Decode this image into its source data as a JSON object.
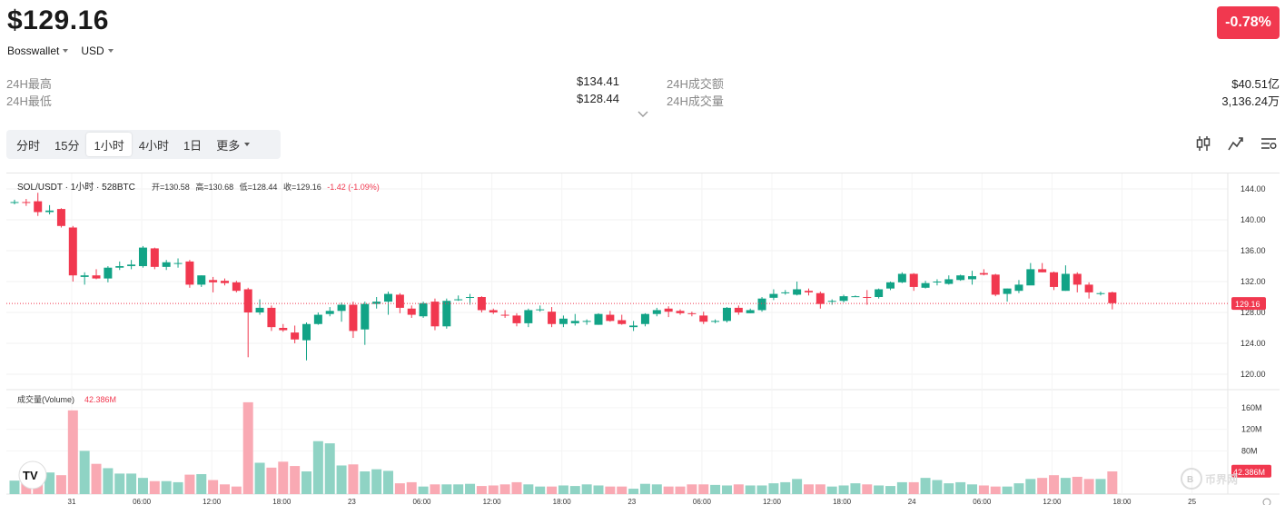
{
  "header": {
    "price": "$129.16",
    "change": "-0.78%",
    "exchange": "Bosswallet",
    "currency": "USD"
  },
  "stats": {
    "high_label": "24H最高",
    "high_value": "$134.41",
    "low_label": "24H最低",
    "low_value": "$128.44",
    "turnover_label": "24H成交额",
    "turnover_value": "$40.51亿",
    "volume_label": "24H成交量",
    "volume_value": "3,136.24万"
  },
  "tabs": [
    "分时",
    "15分",
    "1小时",
    "4小时",
    "1日",
    "更多"
  ],
  "active_tab": "1小时",
  "icons": [
    "candlestick-icon",
    "indicator-icon",
    "settings-icon"
  ],
  "colors": {
    "up": "#12a386",
    "down": "#f1384f",
    "up_volume": "#8fd3c4",
    "down_volume": "#f9a9b3",
    "badge": "#f1384f"
  },
  "chart_data": [
    {
      "type": "candlestick",
      "title": "SOL/USDT · 1小时 · 528BTC",
      "ohlc_labels": {
        "open": "开=130.58",
        "high": "高=130.68",
        "low": "低=128.44",
        "close": "收=129.16",
        "change": "-1.42 (-1.09%)"
      },
      "ylim": [
        118,
        146
      ],
      "y_ticks": [
        "144.00",
        "140.00",
        "136.00",
        "132.00",
        "128.00",
        "124.00",
        "120.00"
      ],
      "last_price_label": "129.16",
      "last_price": 129.16,
      "x_tick_labels": [
        "31",
        "06:00",
        "12:00",
        "18:00",
        "23",
        "06:00",
        "12:00",
        "18:00",
        "23",
        "06:00",
        "12:00",
        "18:00",
        "24",
        "06:00",
        "12:00",
        "18:00",
        "25"
      ],
      "ohlc": [
        [
          142.3,
          142.6,
          142.0,
          142.3
        ],
        [
          142.3,
          142.7,
          141.8,
          142.2
        ],
        [
          142.4,
          143.5,
          140.5,
          141.0
        ],
        [
          141.0,
          141.9,
          140.7,
          141.2
        ],
        [
          141.4,
          141.5,
          139.0,
          139.2
        ],
        [
          139.0,
          139.2,
          132.0,
          132.8
        ],
        [
          132.6,
          133.2,
          131.6,
          132.8
        ],
        [
          132.8,
          133.6,
          132.3,
          132.4
        ],
        [
          132.4,
          134.0,
          131.9,
          133.8
        ],
        [
          133.8,
          134.6,
          133.5,
          134.0
        ],
        [
          134.0,
          134.8,
          133.6,
          134.2
        ],
        [
          134.0,
          136.6,
          133.8,
          136.4
        ],
        [
          136.3,
          136.4,
          133.6,
          133.9
        ],
        [
          133.9,
          134.8,
          133.5,
          134.5
        ],
        [
          134.4,
          135.0,
          133.8,
          134.4
        ],
        [
          134.6,
          134.8,
          131.2,
          131.6
        ],
        [
          131.6,
          132.8,
          131.3,
          132.8
        ],
        [
          132.2,
          132.6,
          130.6,
          131.9
        ],
        [
          132.1,
          132.4,
          131.5,
          131.8
        ],
        [
          131.9,
          132.1,
          130.6,
          130.8
        ],
        [
          131.0,
          131.2,
          122.2,
          128.0
        ],
        [
          128.0,
          129.7,
          127.7,
          128.6
        ],
        [
          128.6,
          128.9,
          125.6,
          126.1
        ],
        [
          126.0,
          126.5,
          125.5,
          125.7
        ],
        [
          125.4,
          126.3,
          124.0,
          124.5
        ],
        [
          124.4,
          126.7,
          121.8,
          126.5
        ],
        [
          126.5,
          128.0,
          126.4,
          127.7
        ],
        [
          127.8,
          128.7,
          127.5,
          128.2
        ],
        [
          128.2,
          129.3,
          126.8,
          129.0
        ],
        [
          129.0,
          129.4,
          124.7,
          125.6
        ],
        [
          125.8,
          129.4,
          123.8,
          129.1
        ],
        [
          129.1,
          130.0,
          128.5,
          129.4
        ],
        [
          129.4,
          130.7,
          127.7,
          130.4
        ],
        [
          130.3,
          130.5,
          127.9,
          128.6
        ],
        [
          128.5,
          128.9,
          127.3,
          127.7
        ],
        [
          127.5,
          129.4,
          127.3,
          129.2
        ],
        [
          129.4,
          129.8,
          125.7,
          126.2
        ],
        [
          126.2,
          129.8,
          125.9,
          129.5
        ],
        [
          129.6,
          130.2,
          129.5,
          129.7
        ],
        [
          129.9,
          130.4,
          129.0,
          130.0
        ],
        [
          130.0,
          130.1,
          128.0,
          128.3
        ],
        [
          128.3,
          128.5,
          127.8,
          128.0
        ],
        [
          127.7,
          128.3,
          127.3,
          127.6
        ],
        [
          127.6,
          127.9,
          126.2,
          126.6
        ],
        [
          126.6,
          128.5,
          126.1,
          128.3
        ],
        [
          128.3,
          128.9,
          128.1,
          128.4
        ],
        [
          128.1,
          128.7,
          126.1,
          126.5
        ],
        [
          126.5,
          127.6,
          126.1,
          127.2
        ],
        [
          126.6,
          127.8,
          126.3,
          126.9
        ],
        [
          126.9,
          127.1,
          126.4,
          126.9
        ],
        [
          126.4,
          127.9,
          126.4,
          127.8
        ],
        [
          127.7,
          128.2,
          126.8,
          126.9
        ],
        [
          127.0,
          127.7,
          126.4,
          126.5
        ],
        [
          126.1,
          126.9,
          125.6,
          126.3
        ],
        [
          126.5,
          127.9,
          126.2,
          127.8
        ],
        [
          127.8,
          128.6,
          127.5,
          128.3
        ],
        [
          128.5,
          128.8,
          127.4,
          128.1
        ],
        [
          128.2,
          128.4,
          127.7,
          127.9
        ],
        [
          127.9,
          128.1,
          127.5,
          127.8
        ],
        [
          127.6,
          128.1,
          126.5,
          126.8
        ],
        [
          126.8,
          127.1,
          126.6,
          126.9
        ],
        [
          126.9,
          128.7,
          126.7,
          128.6
        ],
        [
          128.6,
          128.9,
          127.7,
          128.0
        ],
        [
          127.9,
          128.5,
          127.9,
          128.3
        ],
        [
          128.3,
          130.0,
          128.1,
          129.8
        ],
        [
          129.9,
          131.0,
          129.6,
          130.4
        ],
        [
          130.5,
          130.9,
          130.3,
          130.6
        ],
        [
          130.3,
          132.0,
          130.2,
          131.0
        ],
        [
          130.8,
          131.1,
          130.2,
          130.6
        ],
        [
          130.5,
          130.7,
          128.5,
          129.1
        ],
        [
          129.4,
          129.7,
          129.0,
          129.5
        ],
        [
          129.5,
          130.3,
          129.3,
          130.1
        ],
        [
          130.1,
          130.2,
          130.0,
          130.1
        ],
        [
          130.0,
          130.9,
          129.0,
          129.9
        ],
        [
          130.0,
          131.1,
          129.8,
          131.0
        ],
        [
          131.1,
          132.0,
          130.9,
          131.9
        ],
        [
          131.9,
          133.2,
          131.8,
          133.0
        ],
        [
          133.0,
          133.1,
          130.8,
          131.3
        ],
        [
          131.2,
          132.1,
          131.1,
          131.8
        ],
        [
          131.9,
          132.3,
          131.5,
          132.0
        ],
        [
          131.7,
          132.8,
          131.6,
          132.3
        ],
        [
          132.2,
          132.9,
          132.1,
          132.8
        ],
        [
          132.3,
          133.4,
          131.6,
          132.7
        ],
        [
          133.1,
          133.6,
          132.8,
          132.9
        ],
        [
          132.9,
          133.0,
          130.1,
          130.3
        ],
        [
          130.4,
          131.1,
          129.4,
          131.1
        ],
        [
          130.8,
          132.2,
          130.5,
          131.6
        ],
        [
          131.5,
          134.4,
          131.6,
          133.6
        ],
        [
          133.6,
          134.4,
          133.2,
          133.2
        ],
        [
          133.2,
          133.3,
          130.9,
          131.3
        ],
        [
          130.8,
          134.1,
          130.8,
          133.0
        ],
        [
          133.0,
          133.2,
          130.6,
          131.6
        ],
        [
          131.6,
          131.9,
          129.8,
          130.6
        ],
        [
          130.5,
          130.7,
          130.2,
          130.5
        ],
        [
          130.6,
          130.7,
          128.4,
          129.2
        ]
      ],
      "volume_ylim": [
        0,
        190
      ],
      "volume_ticks": [
        "160M",
        "120M",
        "80M"
      ],
      "volume_title": "成交量(Volume)",
      "volume_value": "42.386M",
      "volume": [
        25,
        35,
        38,
        40,
        35,
        155,
        80,
        56,
        48,
        38,
        38,
        30,
        24,
        24,
        22,
        36,
        37,
        26,
        18,
        14,
        170,
        58,
        49,
        60,
        52,
        42,
        98,
        94,
        53,
        55,
        42,
        46,
        43,
        20,
        22,
        14,
        18,
        18,
        18,
        19,
        15,
        16,
        18,
        22,
        18,
        14,
        14,
        16,
        15,
        18,
        16,
        14,
        14,
        10,
        19,
        18,
        14,
        14,
        18,
        18,
        17,
        16,
        18,
        16,
        16,
        20,
        22,
        28,
        18,
        18,
        14,
        16,
        20,
        18,
        16,
        15,
        22,
        22,
        30,
        26,
        20,
        22,
        18,
        16,
        14,
        14,
        20,
        28,
        30,
        35,
        30,
        32,
        28,
        28,
        42
      ]
    }
  ]
}
